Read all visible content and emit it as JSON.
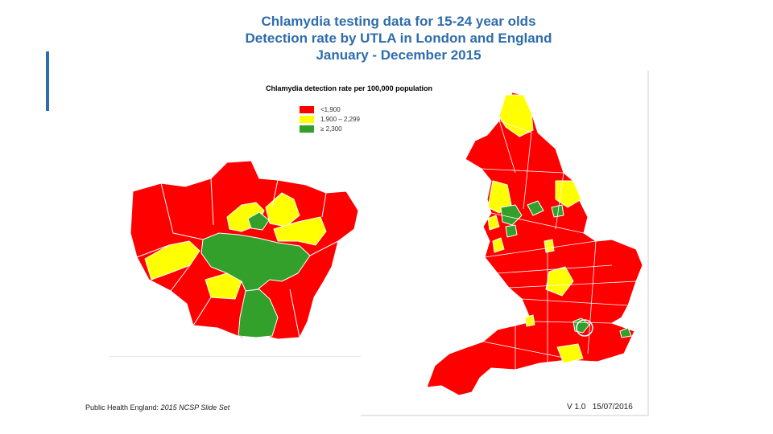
{
  "title": {
    "line1": "Chlamydia testing data for 15-24 year olds",
    "line2": "Detection rate by UTLA in London and England",
    "line3": "January - December 2015"
  },
  "legend": {
    "title": "Chlamydia detection rate per 100,000 population",
    "items": [
      {
        "label": "<1,900",
        "color": "#ff0000"
      },
      {
        "label": "1,900 – 2,299",
        "color": "#ffff00"
      },
      {
        "label": "≥ 2,300",
        "color": "#33a02c"
      }
    ]
  },
  "footer": {
    "source_prefix": "Public Health England:",
    "source_title": "2015 NCSP Slide Set",
    "version": "V 1.0",
    "date": "15/07/2016"
  },
  "colors": {
    "accent": "#2e6dac",
    "low": "#ff0000",
    "mid": "#ffff00",
    "high": "#33a02c"
  }
}
